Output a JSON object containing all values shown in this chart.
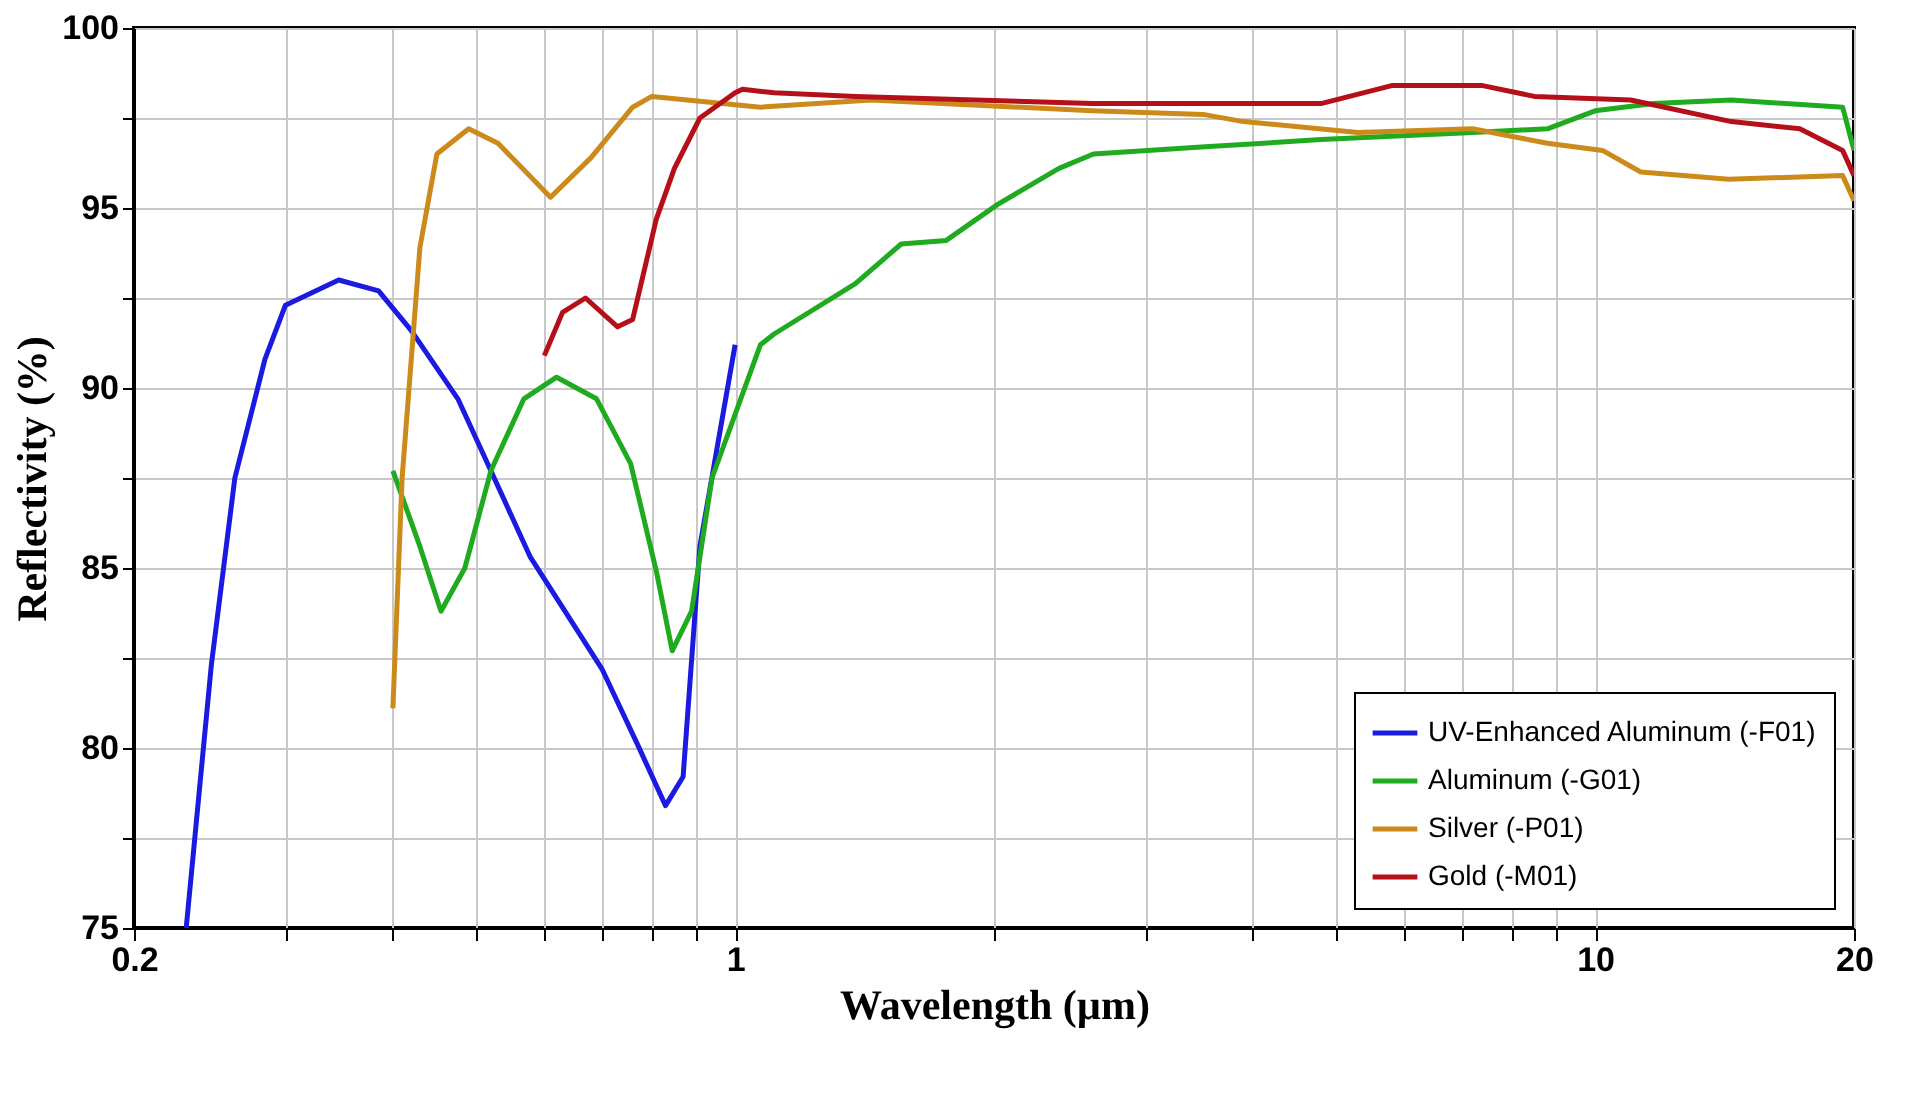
{
  "chart_data": {
    "type": "line",
    "xlabel": "Wavelength (µm)",
    "ylabel": "Reflectivity (%)",
    "log": "x",
    "grid": true,
    "legend": "bottom right",
    "xlim": [
      0.2,
      20
    ],
    "ylim": [
      75,
      100
    ],
    "xticks": [
      0.2,
      {
        "value": 0.3,
        "label": null
      },
      {
        "value": 0.4,
        "label": null
      },
      {
        "value": 0.5,
        "label": null
      },
      {
        "value": 0.6,
        "label": null
      },
      {
        "value": 0.7,
        "label": null
      },
      {
        "value": 0.8,
        "label": null
      },
      {
        "value": 0.9,
        "label": null
      },
      1,
      {
        "value": 2,
        "label": null
      },
      {
        "value": 3,
        "label": null
      },
      {
        "value": 4,
        "label": null
      },
      {
        "value": 5,
        "label": null
      },
      {
        "value": 6,
        "label": null
      },
      {
        "value": 7,
        "label": null
      },
      {
        "value": 8,
        "label": null
      },
      {
        "value": 9,
        "label": null
      },
      10,
      20
    ],
    "yticks": [
      75,
      {
        "value": 77.5,
        "label": null
      },
      80,
      {
        "value": 82.5,
        "label": null
      },
      85,
      {
        "value": 87.5,
        "label": null
      },
      90,
      {
        "value": 92.5,
        "label": null
      },
      95,
      {
        "value": 97.5,
        "label": null
      },
      100
    ],
    "series": [
      {
        "name": "UV-Enhanced Aluminum (-F01)",
        "color": "#1a1ae0",
        "x": [
          0.23,
          0.246,
          0.262,
          0.284,
          0.3,
          0.346,
          0.385,
          0.42,
          0.476,
          0.52,
          0.578,
          0.7,
          0.77,
          0.83,
          0.87,
          0.91,
          1.0
        ],
        "values": [
          75,
          82.3,
          87.5,
          90.8,
          92.3,
          93.0,
          92.7,
          91.6,
          89.7,
          87.7,
          85.3,
          82.2,
          80.1,
          78.4,
          79.2,
          85.6,
          91.2
        ]
      },
      {
        "name": "Aluminum (-G01)",
        "color": "#1faa1f",
        "x": [
          0.4,
          0.43,
          0.455,
          0.485,
          0.52,
          0.568,
          0.62,
          0.69,
          0.756,
          0.81,
          0.845,
          0.89,
          0.94,
          1.07,
          1.11,
          1.38,
          1.56,
          1.76,
          2.02,
          2.38,
          2.61,
          3.52,
          4.8,
          7.2,
          8.8,
          10.0,
          11.7,
          14.4,
          19.4,
          20
        ],
        "values": [
          87.7,
          85.6,
          83.8,
          85.0,
          87.7,
          89.7,
          90.3,
          89.7,
          87.9,
          84.9,
          82.7,
          83.8,
          87.5,
          91.2,
          91.5,
          92.9,
          94.0,
          94.1,
          95.1,
          96.1,
          96.5,
          96.7,
          96.9,
          97.1,
          97.2,
          97.7,
          97.9,
          98.0,
          97.8,
          96.6
        ]
      },
      {
        "name": "Silver (-P01)",
        "color": "#cc8a1a",
        "x": [
          0.4,
          0.41,
          0.43,
          0.45,
          0.49,
          0.53,
          0.61,
          0.68,
          0.76,
          0.8,
          0.88,
          1.07,
          1.44,
          2.6,
          3.5,
          3.9,
          5.3,
          7.2,
          8.8,
          10.2,
          11.3,
          14.3,
          19.4,
          20
        ],
        "values": [
          81.1,
          87.5,
          93.9,
          96.5,
          97.2,
          96.8,
          95.3,
          96.4,
          97.8,
          98.1,
          98.0,
          97.8,
          98.0,
          97.7,
          97.6,
          97.4,
          97.1,
          97.2,
          96.8,
          96.6,
          96.0,
          95.8,
          95.9,
          95.2
        ]
      },
      {
        "name": "Gold (-M01)",
        "color": "#b5101a",
        "x": [
          0.6,
          0.63,
          0.67,
          0.73,
          0.76,
          0.81,
          0.85,
          0.91,
          1.0,
          1.02,
          1.11,
          1.38,
          2.6,
          4.8,
          5.8,
          7.4,
          8.5,
          11,
          14.4,
          17.3,
          19.4,
          20
        ],
        "values": [
          90.9,
          92.1,
          92.5,
          91.7,
          91.9,
          94.7,
          96.1,
          97.5,
          98.2,
          98.3,
          98.2,
          98.1,
          97.9,
          97.9,
          98.4,
          98.4,
          98.1,
          98.0,
          97.4,
          97.2,
          96.6,
          95.9
        ]
      }
    ]
  }
}
